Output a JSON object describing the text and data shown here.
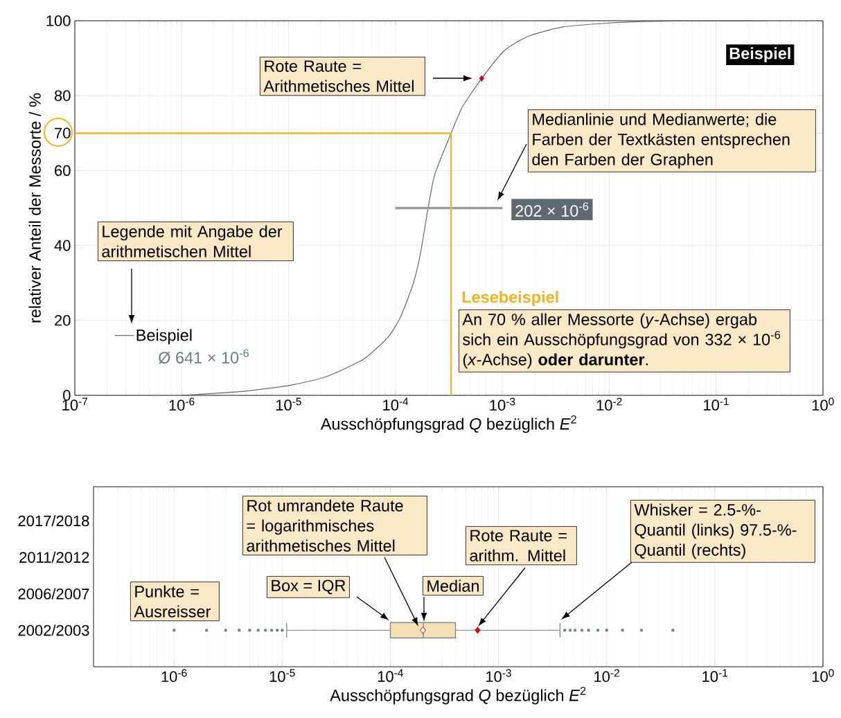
{
  "chart_data": [
    {
      "type": "line",
      "xlabel": "Ausschöpfungsgrad *Q* bezüglich *E*$^{2}$",
      "ylabel": "relativer Anteil der Messorte / %",
      "log": "x",
      "grid": true,
      "legend": "bottom left",
      "xlim": [
        1e-07,
        1
      ],
      "ylim": [
        0,
        100
      ],
      "xticks": [
        {
          "value": 1e-07,
          "label": "10$^{-7}$"
        },
        {
          "value": 1e-06,
          "label": "10$^{-6}$"
        },
        {
          "value": 1e-05,
          "label": "10$^{-5}$"
        },
        {
          "value": 0.0001,
          "label": "10$^{-4}$"
        },
        {
          "value": 0.001,
          "label": "10$^{-3}$"
        },
        {
          "value": 0.01,
          "label": "10$^{-2}$"
        },
        {
          "value": 0.1,
          "label": "10$^{-1}$"
        },
        {
          "value": 1,
          "label": "10$^{0}$"
        }
      ],
      "yticks": [
        0,
        20,
        40,
        60,
        70,
        80,
        100
      ],
      "series": [
        {
          "name": "Beispiel",
          "color": "#5f6b6d",
          "x": [
            1e-06,
            3.49e-06,
            1e-05,
            2.25e-05,
            5e-05,
            8.5e-05,
            0.000111,
            0.000145,
            0.00017,
            0.000202,
            0.000234,
            0.000332,
            0.000421,
            0.000641,
            0.00105,
            0.00173,
            0.00363,
            0.00984,
            0.0207,
            0.071,
            0.3
          ],
          "values": [
            0,
            1.0,
            2.6,
            5.0,
            9.6,
            15.5,
            20.8,
            29.4,
            37.3,
            50,
            59.1,
            70,
            76.9,
            84.6,
            92.1,
            95.8,
            98.3,
            99.4,
            99.8,
            100,
            100
          ]
        },
        {
          "type": "scatter",
          "marker": "diamond",
          "color": "#d7000f",
          "x": [
            0.000641
          ],
          "values": [
            84.6
          ]
        },
        {
          "color": "#9a9a9a",
          "x": [
            0.0001,
            0.001
          ],
          "values": [
            50,
            50
          ]
        },
        {
          "color": "#f0b323",
          "x": [
            1e-07,
            0.000332,
            0.000332
          ],
          "values": [
            70,
            70,
            0
          ]
        }
      ],
      "annotations": [
        "Rote Raute = Arithmetisches Mittel",
        "Medianlinie und Medianwerte; die Farben der Textkästen entsprechen den Farben der Graphen",
        "Beispiel",
        "202 × 10$^{-6}$",
        "Legende mit Angabe der arithmetischen Mittel",
        "Lesebeispiel",
        "An 70 % aller Messorte (*y*-Achse) ergab sich ein Ausschöpfungsgrad von 332 × 10$^{-6}$ (*x*-Achse) **oder darunter**.",
        "Ø 641 × 10$^{-6}$"
      ]
    },
    {
      "type": "box",
      "orientation": "horizontal",
      "xlabel": "Ausschöpfungsgrad *Q* bezüglich *E*$^{2}$",
      "log": "x",
      "grid": "x",
      "categories": [
        "2017/2018",
        "2011/2012",
        "2006/2007",
        "2002/2003"
      ],
      "xlim": [
        1.8e-07,
        1
      ],
      "xticks": [
        {
          "value": 1e-06,
          "label": "10$^{-6}$"
        },
        {
          "value": 1e-05,
          "label": "10$^{-5}$"
        },
        {
          "value": 0.0001,
          "label": "10$^{-4}$"
        },
        {
          "value": 0.001,
          "label": "10$^{-3}$"
        },
        {
          "value": 0.01,
          "label": "10$^{-2}$"
        },
        {
          "value": 0.1,
          "label": "10$^{-1}$"
        },
        {
          "value": 1,
          "label": "10$^{0}$"
        }
      ],
      "series": [
        {
          "type": "box",
          "color": "#f5dfb5",
          "boxes": [
            null,
            null,
            null,
            {
              "low": 1.1e-05,
              "q1": 0.0001,
              "median": 0.000202,
              "q3": 0.0004,
              "high": 0.0037,
              "mean": 0.000641,
              "outliers": [
                1e-06,
                2e-06,
                3e-06,
                4e-06,
                5e-06,
                6e-06,
                7e-06,
                8e-06,
                9e-06,
                1e-05,
                0.0041,
                0.0046,
                0.0051,
                0.0059,
                0.0068,
                0.0083,
                0.01,
                0.014,
                0.021,
                0.041
              ]
            }
          ]
        },
        {
          "type": "scatter",
          "marker": "diamond",
          "color": "#e8303a",
          "x": [
            "2002/2003"
          ],
          "values": [
            0.0002
          ]
        }
      ],
      "annotations": [
        "Rot umrandete Raute = logarithmisches arithmetisches Mittel",
        "Rote Raute = arithm. Mittel",
        "Whisker = 2.5-%-Quantil (links) 97.5-%-Quantil (rechts)",
        "Punkte = Ausreisser",
        "Box = IQR",
        "Median"
      ]
    }
  ]
}
